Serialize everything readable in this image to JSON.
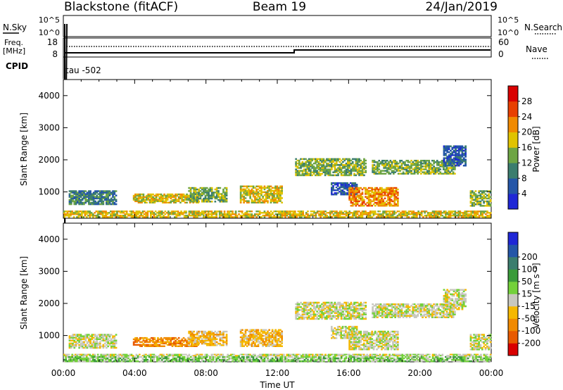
{
  "title": {
    "station": "Blackstone (fitACF)",
    "beam": "Beam 19",
    "date": "24/Jan/2019"
  },
  "header": {
    "left_top": "N.Sky",
    "left_freq": "Freq.",
    "left_freq_unit": "[MHz]",
    "left_cpid": "CPID",
    "right_top": "N.Search",
    "right_nave": "Nave",
    "sky_tick_hi": "10^5",
    "sky_tick_lo": "10^0",
    "search_tick_hi": "10^5",
    "search_tick_lo": "10^0",
    "freq_tick_hi": "18",
    "freq_tick_lo": "8",
    "nave_tick_hi": "60",
    "nave_tick_lo": "0",
    "cpid_label": "tau -502"
  },
  "colorbars": {
    "power": {
      "title": "Power [dB]",
      "ticks": [
        "4",
        "8",
        "12",
        "16",
        "20",
        "24",
        "28"
      ],
      "colors": [
        "#1f27d6",
        "#2456a8",
        "#3b7d6e",
        "#6ea544",
        "#e0c300",
        "#f08a00",
        "#e84000",
        "#d90000"
      ]
    },
    "velocity": {
      "title": "Velocity [m s⁻¹]",
      "ticks": [
        "200",
        "100",
        "50",
        "15",
        "-15",
        "-50",
        "-100",
        "-200"
      ],
      "colors": [
        "#1f27d6",
        "#2456a8",
        "#3b7d6e",
        "#3a9b3a",
        "#73d13a",
        "#c8c8be",
        "#f5b800",
        "#f08a00",
        "#e85a00",
        "#d90000"
      ]
    }
  },
  "chart_data": [
    {
      "type": "heatmap",
      "name_field": "power",
      "ylabel": "Slant Range [km]",
      "yticks": [
        "1000",
        "2000",
        "3000",
        "4000"
      ],
      "ylim": [
        180,
        4500
      ],
      "xlim": [
        0,
        24
      ],
      "echo_bands": [
        {
          "t0": 0.0,
          "t1": 24.0,
          "r0": 200,
          "r1": 420,
          "level": 4
        },
        {
          "t0": 0.3,
          "t1": 3.0,
          "r0": 600,
          "r1": 1050,
          "level": 2
        },
        {
          "t0": 3.9,
          "t1": 7.6,
          "r0": 650,
          "r1": 950,
          "level": 4
        },
        {
          "t0": 7.0,
          "t1": 9.2,
          "r0": 680,
          "r1": 1150,
          "level": 3
        },
        {
          "t0": 9.9,
          "t1": 12.3,
          "r0": 650,
          "r1": 1200,
          "level": 4
        },
        {
          "t0": 13.0,
          "t1": 17.0,
          "r0": 1500,
          "r1": 2050,
          "level": 3
        },
        {
          "t0": 15.0,
          "t1": 16.5,
          "r0": 900,
          "r1": 1300,
          "level": 1
        },
        {
          "t0": 16.0,
          "t1": 18.8,
          "r0": 550,
          "r1": 1150,
          "level": 5
        },
        {
          "t0": 17.3,
          "t1": 22.0,
          "r0": 1550,
          "r1": 2000,
          "level": 3
        },
        {
          "t0": 21.3,
          "t1": 22.6,
          "r0": 1800,
          "r1": 2450,
          "level": 1
        },
        {
          "t0": 22.8,
          "t1": 24.0,
          "r0": 550,
          "r1": 1050,
          "level": 3
        }
      ]
    },
    {
      "type": "heatmap",
      "name_field": "velocity",
      "ylabel": "Slant Range [km]",
      "yticks": [
        "1000",
        "2000",
        "3000",
        "4000"
      ],
      "ylim": [
        180,
        4500
      ],
      "xlim": [
        0,
        24
      ],
      "xlabel": "Time UT",
      "xticks": [
        "00:00",
        "04:00",
        "08:00",
        "12:00",
        "16:00",
        "20:00",
        "00:00"
      ],
      "echo_bands": [
        {
          "t0": 0.0,
          "t1": 24.0,
          "r0": 180,
          "r1": 360,
          "level": 4
        },
        {
          "t0": 0.0,
          "t1": 24.0,
          "r0": 360,
          "r1": 430,
          "level": 5
        },
        {
          "t0": 0.3,
          "t1": 3.0,
          "r0": 600,
          "r1": 1050,
          "level": 5
        },
        {
          "t0": 3.9,
          "t1": 7.6,
          "r0": 650,
          "r1": 950,
          "level": 7
        },
        {
          "t0": 7.0,
          "t1": 9.2,
          "r0": 680,
          "r1": 1150,
          "level": 6
        },
        {
          "t0": 9.9,
          "t1": 12.3,
          "r0": 650,
          "r1": 1200,
          "level": 6
        },
        {
          "t0": 13.0,
          "t1": 17.0,
          "r0": 1500,
          "r1": 2050,
          "level": 5
        },
        {
          "t0": 15.0,
          "t1": 16.5,
          "r0": 900,
          "r1": 1300,
          "level": 5
        },
        {
          "t0": 16.0,
          "t1": 18.8,
          "r0": 550,
          "r1": 1150,
          "level": 5
        },
        {
          "t0": 17.3,
          "t1": 22.0,
          "r0": 1550,
          "r1": 2000,
          "level": 5
        },
        {
          "t0": 21.3,
          "t1": 22.6,
          "r0": 1800,
          "r1": 2450,
          "level": 5
        },
        {
          "t0": 22.8,
          "t1": 24.0,
          "r0": 550,
          "r1": 1050,
          "level": 5
        }
      ]
    }
  ]
}
